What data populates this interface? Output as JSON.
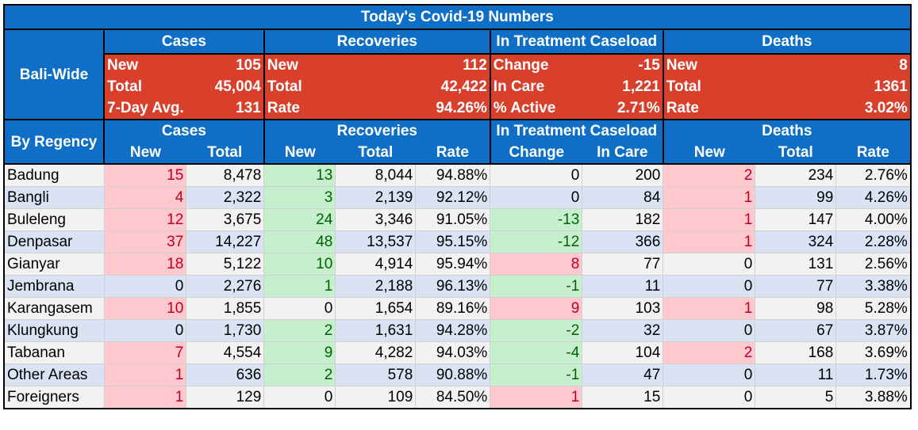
{
  "title": "Today's Covid-19 Numbers",
  "groups": {
    "cases": "Cases",
    "recoveries": "Recoveries",
    "treatment": "In Treatment Caseload",
    "deaths": "Deaths"
  },
  "bali_wide": {
    "label": "Bali-Wide",
    "cases": [
      {
        "label": "New",
        "value": "105"
      },
      {
        "label": "Total",
        "value": "45,004"
      },
      {
        "label": "7-Day Avg.",
        "value": "131"
      }
    ],
    "recoveries": [
      {
        "label": "New",
        "value": "112"
      },
      {
        "label": "Total",
        "value": "42,422"
      },
      {
        "label": "Rate",
        "value": "94.26%"
      }
    ],
    "treatment": [
      {
        "label": "Change",
        "value": "-15"
      },
      {
        "label": "In Care",
        "value": "1,221"
      },
      {
        "label": "% Active",
        "value": "2.71%"
      }
    ],
    "deaths": [
      {
        "label": "New",
        "value": "8"
      },
      {
        "label": "Total",
        "value": "1361"
      },
      {
        "label": "Rate",
        "value": "3.02%"
      }
    ]
  },
  "by_regency": {
    "label": "By Regency",
    "columns": {
      "cases_new": "New",
      "cases_total": "Total",
      "rec_new": "New",
      "rec_total": "Total",
      "rec_rate": "Rate",
      "tr_change": "Change",
      "tr_incare": "In Care",
      "d_new": "New",
      "d_total": "Total",
      "d_rate": "Rate"
    },
    "rows": [
      {
        "name": "Badung",
        "cases_new": "15",
        "cases_total": "8,478",
        "rec_new": "13",
        "rec_total": "8,044",
        "rec_rate": "94.88%",
        "tr_change": "0",
        "tr_incare": "200",
        "d_new": "2",
        "d_total": "234",
        "d_rate": "2.76%"
      },
      {
        "name": "Bangli",
        "cases_new": "4",
        "cases_total": "2,322",
        "rec_new": "3",
        "rec_total": "2,139",
        "rec_rate": "92.12%",
        "tr_change": "0",
        "tr_incare": "84",
        "d_new": "1",
        "d_total": "99",
        "d_rate": "4.26%"
      },
      {
        "name": "Buleleng",
        "cases_new": "12",
        "cases_total": "3,675",
        "rec_new": "24",
        "rec_total": "3,346",
        "rec_rate": "91.05%",
        "tr_change": "-13",
        "tr_incare": "182",
        "d_new": "1",
        "d_total": "147",
        "d_rate": "4.00%"
      },
      {
        "name": "Denpasar",
        "cases_new": "37",
        "cases_total": "14,227",
        "rec_new": "48",
        "rec_total": "13,537",
        "rec_rate": "95.15%",
        "tr_change": "-12",
        "tr_incare": "366",
        "d_new": "1",
        "d_total": "324",
        "d_rate": "2.28%"
      },
      {
        "name": "Gianyar",
        "cases_new": "18",
        "cases_total": "5,122",
        "rec_new": "10",
        "rec_total": "4,914",
        "rec_rate": "95.94%",
        "tr_change": "8",
        "tr_incare": "77",
        "d_new": "0",
        "d_total": "131",
        "d_rate": "2.56%"
      },
      {
        "name": "Jembrana",
        "cases_new": "0",
        "cases_total": "2,276",
        "rec_new": "1",
        "rec_total": "2,188",
        "rec_rate": "96.13%",
        "tr_change": "-1",
        "tr_incare": "11",
        "d_new": "0",
        "d_total": "77",
        "d_rate": "3.38%"
      },
      {
        "name": "Karangasem",
        "cases_new": "10",
        "cases_total": "1,855",
        "rec_new": "0",
        "rec_total": "1,654",
        "rec_rate": "89.16%",
        "tr_change": "9",
        "tr_incare": "103",
        "d_new": "1",
        "d_total": "98",
        "d_rate": "5.28%"
      },
      {
        "name": "Klungkung",
        "cases_new": "0",
        "cases_total": "1,730",
        "rec_new": "2",
        "rec_total": "1,631",
        "rec_rate": "94.28%",
        "tr_change": "-2",
        "tr_incare": "32",
        "d_new": "0",
        "d_total": "67",
        "d_rate": "3.87%"
      },
      {
        "name": "Tabanan",
        "cases_new": "7",
        "cases_total": "4,554",
        "rec_new": "9",
        "rec_total": "4,282",
        "rec_rate": "94.03%",
        "tr_change": "-4",
        "tr_incare": "104",
        "d_new": "2",
        "d_total": "168",
        "d_rate": "3.69%"
      },
      {
        "name": "Other Areas",
        "cases_new": "1",
        "cases_total": "636",
        "rec_new": "2",
        "rec_total": "578",
        "rec_rate": "90.88%",
        "tr_change": "-1",
        "tr_incare": "47",
        "d_new": "0",
        "d_total": "11",
        "d_rate": "1.73%"
      },
      {
        "name": "Foreigners",
        "cases_new": "1",
        "cases_total": "129",
        "rec_new": "0",
        "rec_total": "109",
        "rec_rate": "84.50%",
        "tr_change": "1",
        "tr_incare": "15",
        "d_new": "0",
        "d_total": "5",
        "d_rate": "3.88%"
      }
    ]
  },
  "colors": {
    "header_blue": "#0f6fc6",
    "summary_red": "#d9402c",
    "increase_fill": "#ffc7ce",
    "decrease_fill": "#c6efce",
    "row_gray": "#f2f2f2",
    "row_blue": "#dae3f3"
  }
}
